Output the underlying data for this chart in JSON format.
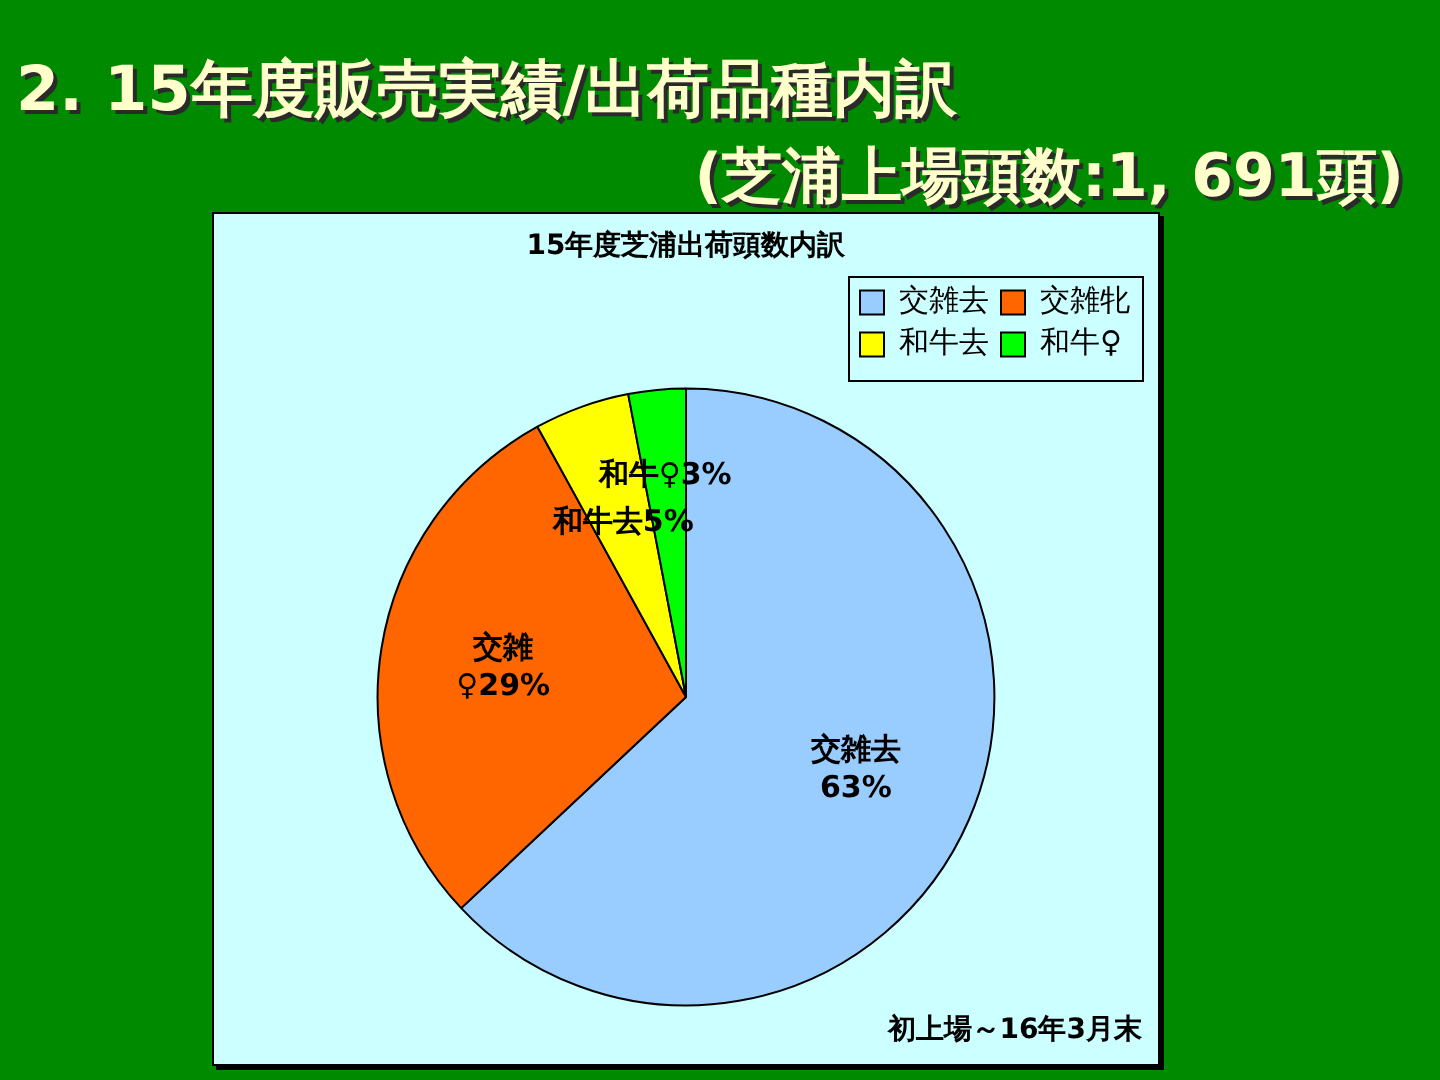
{
  "chart_data": {
    "type": "pie",
    "title": "2. 15年度販売実績/出荷品種内訳",
    "subtitle": "(芝浦上場頭数:1, 691頭)",
    "categories": [
      "交雑去",
      "交雑牝",
      "和牛去",
      "和牛♀"
    ],
    "values": [
      63,
      29,
      5,
      3
    ],
    "colors": [
      "#99ccff",
      "#ff6600",
      "#ffff00",
      "#00ff00"
    ],
    "value_labels": [
      "交雑去\n63%",
      "交雑\n♀29%",
      "和牛去5%",
      "和牛♀3%"
    ],
    "legend": "top right",
    "annotations": [
      "15年度芝浦出荷頭数内訳",
      "初上場～16年3月末"
    ]
  }
}
